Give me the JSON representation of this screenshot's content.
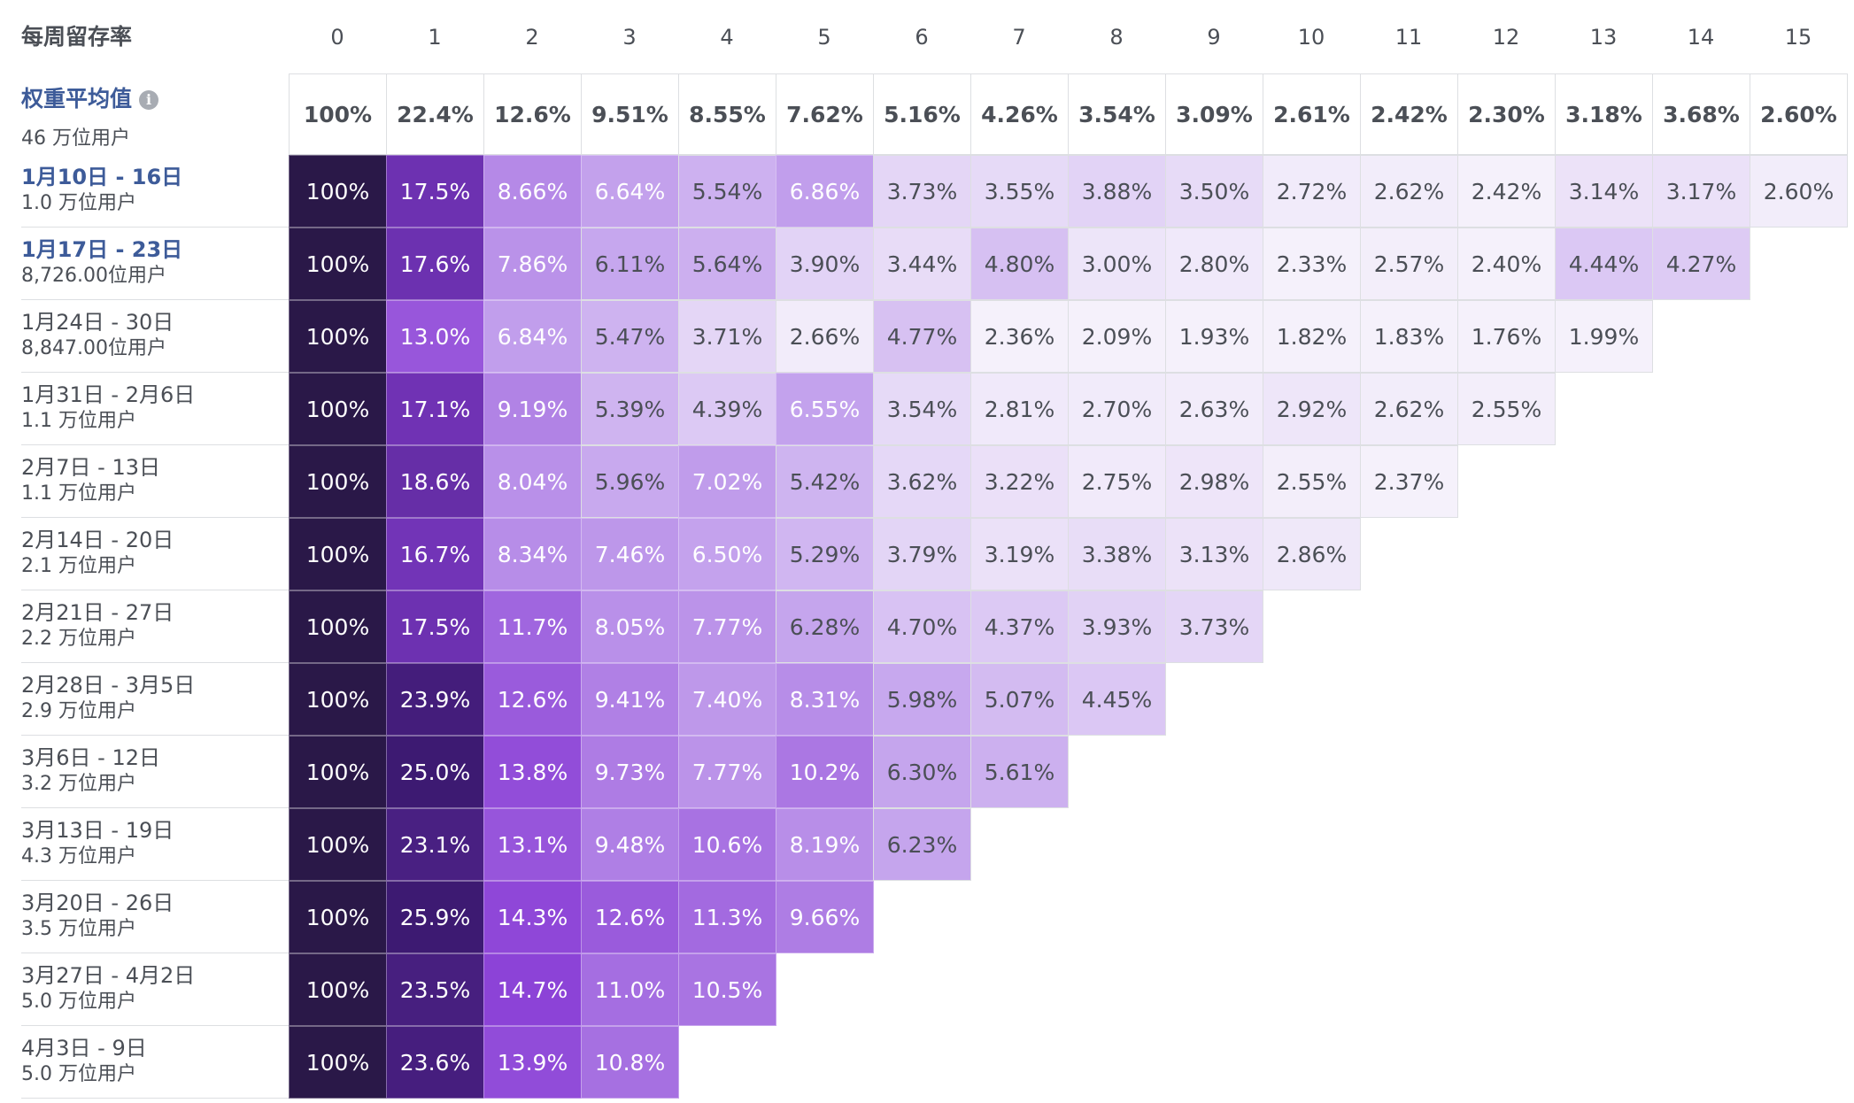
{
  "chart_data": {
    "type": "heatmap",
    "title": "每周留存率",
    "columns": [
      "0",
      "1",
      "2",
      "3",
      "4",
      "5",
      "6",
      "7",
      "8",
      "9",
      "10",
      "11",
      "12",
      "13",
      "14",
      "15"
    ],
    "weighted_average": {
      "label": "权重平均值",
      "users": "46 万位用户",
      "values": [
        "100%",
        "22.4%",
        "12.6%",
        "9.51%",
        "8.55%",
        "7.62%",
        "5.16%",
        "4.26%",
        "3.54%",
        "3.09%",
        "2.61%",
        "2.42%",
        "2.30%",
        "3.18%",
        "3.68%",
        "2.60%"
      ]
    },
    "cohorts": [
      {
        "label": "1月10日 - 16日",
        "users": "1.0 万位用户",
        "link": true,
        "values": [
          "100%",
          "17.5%",
          "8.66%",
          "6.64%",
          "5.54%",
          "6.86%",
          "3.73%",
          "3.55%",
          "3.88%",
          "3.50%",
          "2.72%",
          "2.62%",
          "2.42%",
          "3.14%",
          "3.17%",
          "2.60%"
        ]
      },
      {
        "label": "1月17日 - 23日",
        "users": "8,726.00位用户",
        "link": true,
        "values": [
          "100%",
          "17.6%",
          "7.86%",
          "6.11%",
          "5.64%",
          "3.90%",
          "3.44%",
          "4.80%",
          "3.00%",
          "2.80%",
          "2.33%",
          "2.57%",
          "2.40%",
          "4.44%",
          "4.27%"
        ]
      },
      {
        "label": "1月24日 - 30日",
        "users": "8,847.00位用户",
        "link": false,
        "values": [
          "100%",
          "13.0%",
          "6.84%",
          "5.47%",
          "3.71%",
          "2.66%",
          "4.77%",
          "2.36%",
          "2.09%",
          "1.93%",
          "1.82%",
          "1.83%",
          "1.76%",
          "1.99%"
        ]
      },
      {
        "label": "1月31日 - 2月6日",
        "users": "1.1 万位用户",
        "link": false,
        "values": [
          "100%",
          "17.1%",
          "9.19%",
          "5.39%",
          "4.39%",
          "6.55%",
          "3.54%",
          "2.81%",
          "2.70%",
          "2.63%",
          "2.92%",
          "2.62%",
          "2.55%"
        ]
      },
      {
        "label": "2月7日 - 13日",
        "users": "1.1 万位用户",
        "link": false,
        "values": [
          "100%",
          "18.6%",
          "8.04%",
          "5.96%",
          "7.02%",
          "5.42%",
          "3.62%",
          "3.22%",
          "2.75%",
          "2.98%",
          "2.55%",
          "2.37%"
        ]
      },
      {
        "label": "2月14日 - 20日",
        "users": "2.1 万位用户",
        "link": false,
        "values": [
          "100%",
          "16.7%",
          "8.34%",
          "7.46%",
          "6.50%",
          "5.29%",
          "3.79%",
          "3.19%",
          "3.38%",
          "3.13%",
          "2.86%"
        ]
      },
      {
        "label": "2月21日 - 27日",
        "users": "2.2 万位用户",
        "link": false,
        "values": [
          "100%",
          "17.5%",
          "11.7%",
          "8.05%",
          "7.77%",
          "6.28%",
          "4.70%",
          "4.37%",
          "3.93%",
          "3.73%"
        ]
      },
      {
        "label": "2月28日 - 3月5日",
        "users": "2.9 万位用户",
        "link": false,
        "values": [
          "100%",
          "23.9%",
          "12.6%",
          "9.41%",
          "7.40%",
          "8.31%",
          "5.98%",
          "5.07%",
          "4.45%"
        ]
      },
      {
        "label": "3月6日 - 12日",
        "users": "3.2 万位用户",
        "link": false,
        "values": [
          "100%",
          "25.0%",
          "13.8%",
          "9.73%",
          "7.77%",
          "10.2%",
          "6.30%",
          "5.61%"
        ]
      },
      {
        "label": "3月13日 - 19日",
        "users": "4.3 万位用户",
        "link": false,
        "values": [
          "100%",
          "23.1%",
          "13.1%",
          "9.48%",
          "10.6%",
          "8.19%",
          "6.23%"
        ]
      },
      {
        "label": "3月20日 - 26日",
        "users": "3.5 万位用户",
        "link": false,
        "values": [
          "100%",
          "25.9%",
          "14.3%",
          "12.6%",
          "11.3%",
          "9.66%"
        ]
      },
      {
        "label": "3月27日 - 4月2日",
        "users": "5.0 万位用户",
        "link": false,
        "values": [
          "100%",
          "23.5%",
          "14.7%",
          "11.0%",
          "10.5%"
        ]
      },
      {
        "label": "4月3日 - 9日",
        "users": "5.0 万位用户",
        "link": false,
        "values": [
          "100%",
          "23.6%",
          "13.9%",
          "10.8%"
        ]
      }
    ],
    "colors": {
      "max": "#2a1848",
      "high": "#3d1a72",
      "mid": "#8a3fd6",
      "low": "#c7a8ee",
      "faint": "#f5f1fb",
      "border": "#dddfe2",
      "link": "#3d5b99"
    }
  }
}
